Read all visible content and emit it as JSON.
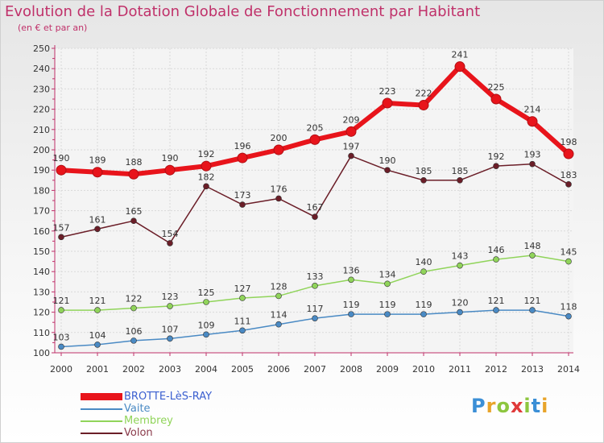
{
  "title": "Evolution de la Dotation Globale de Fonctionnement par Habitant",
  "subtitle": "(en € et par an)",
  "colors": {
    "title": "#c0316a",
    "axis_text": "#333333",
    "grid": "#d9d9d9"
  },
  "logo": {
    "letters": [
      "P",
      "r",
      "o",
      "x",
      "i",
      "t",
      "i"
    ],
    "colors": [
      "#3b8fd6",
      "#e8a42a",
      "#8dc63f",
      "#e03a3a",
      "#8dc63f",
      "#3b8fd6",
      "#e8a42a"
    ]
  },
  "chart_data": {
    "type": "line",
    "title": "Evolution de la Dotation Globale de Fonctionnement par Habitant",
    "subtitle": "(en € et par an)",
    "xlabel": "",
    "ylabel": "",
    "ylim": [
      100,
      250
    ],
    "yticks": [
      "100",
      "110",
      "120",
      "130",
      "140",
      "150",
      "160",
      "170",
      "180",
      "190",
      "200",
      "210",
      "220",
      "230",
      "240",
      "250"
    ],
    "categories": [
      "2000",
      "2001",
      "2002",
      "2003",
      "2004",
      "2005",
      "2006",
      "2007",
      "2008",
      "2009",
      "2010",
      "2011",
      "2012",
      "2013",
      "2014"
    ],
    "grid": true,
    "legend_position": "bottom-left",
    "series": [
      {
        "name": "BROTTE-LèS-RAY",
        "color": "#e8141b",
        "legend_color": "#3a5fd0",
        "width": 6,
        "marker": 6,
        "values": [
          190,
          189,
          188,
          190,
          192,
          196,
          200,
          205,
          209,
          223,
          222,
          241,
          225,
          214,
          198
        ],
        "labels": [
          "190",
          "189",
          "188",
          "190",
          "192",
          "196",
          "200",
          "205",
          "209",
          "223",
          "222",
          "241",
          "225",
          "214",
          "198"
        ]
      },
      {
        "name": "Vaite",
        "color": "#4a8ac4",
        "legend_color": "#4a8ac4",
        "width": 1.5,
        "marker": 3.5,
        "values": [
          103,
          104,
          106,
          107,
          109,
          111,
          114,
          117,
          119,
          119,
          119,
          120,
          121,
          121,
          118
        ],
        "labels": [
          "103",
          "104",
          "106",
          "107",
          "109",
          "111",
          "114",
          "117",
          "119",
          "119",
          "119",
          "120",
          "121",
          "121",
          "118"
        ]
      },
      {
        "name": "Membrey",
        "color": "#90d45a",
        "legend_color": "#90d45a",
        "width": 1.5,
        "marker": 3.5,
        "values": [
          121,
          121,
          122,
          123,
          125,
          127,
          128,
          133,
          136,
          134,
          140,
          143,
          146,
          148,
          145
        ],
        "labels": [
          "121",
          "121",
          "122",
          "123",
          "125",
          "127",
          "128",
          "133",
          "136",
          "134",
          "140",
          "143",
          "146",
          "148",
          "145"
        ]
      },
      {
        "name": "Volon",
        "color": "#6b1e28",
        "legend_color": "#8a3a4a",
        "width": 1.5,
        "marker": 3.5,
        "values": [
          157,
          161,
          165,
          154,
          182,
          173,
          176,
          167,
          197,
          190,
          185,
          185,
          192,
          193,
          183
        ],
        "labels": [
          "157",
          "161",
          "165",
          "154",
          "182",
          "173",
          "176",
          "167",
          "197",
          "190",
          "185",
          "185",
          "192",
          "193",
          "183"
        ]
      }
    ]
  }
}
